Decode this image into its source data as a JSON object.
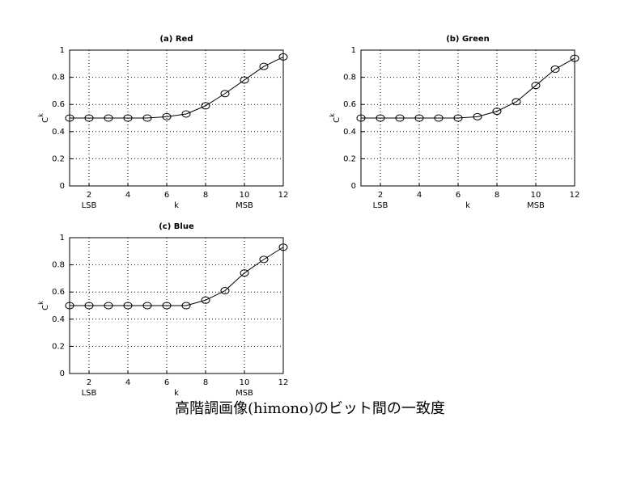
{
  "chart_data": [
    {
      "type": "line",
      "title": "(a) Red",
      "xlabel": "k",
      "ylabel": {
        "base": "C",
        "sup": "k"
      },
      "x": [
        1,
        2,
        3,
        4,
        5,
        6,
        7,
        8,
        9,
        10,
        11,
        12
      ],
      "series": [
        {
          "color": "#000000",
          "values": [
            0.5,
            0.5,
            0.5,
            0.5,
            0.5,
            0.51,
            0.53,
            0.59,
            0.68,
            0.78,
            0.88,
            0.95
          ]
        }
      ],
      "xlim": [
        1,
        12
      ],
      "xticks": [
        2,
        4,
        6,
        8,
        10,
        12
      ],
      "ylim": [
        0,
        1
      ],
      "yticks": [
        0,
        0.2,
        0.4,
        0.6,
        0.8,
        1
      ],
      "annotations": [
        {
          "x": 2,
          "text": "LSB"
        },
        {
          "x": 10,
          "text": "MSB"
        }
      ],
      "grid": true
    },
    {
      "type": "line",
      "title": "(b) Green",
      "xlabel": "k",
      "ylabel": {
        "base": "C",
        "sup": "k"
      },
      "x": [
        1,
        2,
        3,
        4,
        5,
        6,
        7,
        8,
        9,
        10,
        11,
        12
      ],
      "series": [
        {
          "color": "#000000",
          "values": [
            0.5,
            0.5,
            0.5,
            0.5,
            0.5,
            0.5,
            0.51,
            0.55,
            0.62,
            0.74,
            0.86,
            0.94
          ]
        }
      ],
      "xlim": [
        1,
        12
      ],
      "xticks": [
        2,
        4,
        6,
        8,
        10,
        12
      ],
      "ylim": [
        0,
        1
      ],
      "yticks": [
        0,
        0.2,
        0.4,
        0.6,
        0.8,
        1
      ],
      "annotations": [
        {
          "x": 2,
          "text": "LSB"
        },
        {
          "x": 10,
          "text": "MSB"
        }
      ],
      "grid": true
    },
    {
      "type": "line",
      "title": "(c) Blue",
      "xlabel": "k",
      "ylabel": {
        "base": "C",
        "sup": "k"
      },
      "x": [
        1,
        2,
        3,
        4,
        5,
        6,
        7,
        8,
        9,
        10,
        11,
        12
      ],
      "series": [
        {
          "color": "#000000",
          "values": [
            0.5,
            0.5,
            0.5,
            0.5,
            0.5,
            0.5,
            0.5,
            0.54,
            0.61,
            0.74,
            0.84,
            0.93
          ]
        }
      ],
      "xlim": [
        1,
        12
      ],
      "xticks": [
        2,
        4,
        6,
        8,
        10,
        12
      ],
      "ylim": [
        0,
        1
      ],
      "yticks": [
        0,
        0.2,
        0.4,
        0.6,
        0.8,
        1
      ],
      "annotations": [
        {
          "x": 2,
          "text": "LSB"
        },
        {
          "x": 10,
          "text": "MSB"
        }
      ],
      "grid": true
    }
  ],
  "caption": "高階調画像(himono)のビット間の一致度"
}
